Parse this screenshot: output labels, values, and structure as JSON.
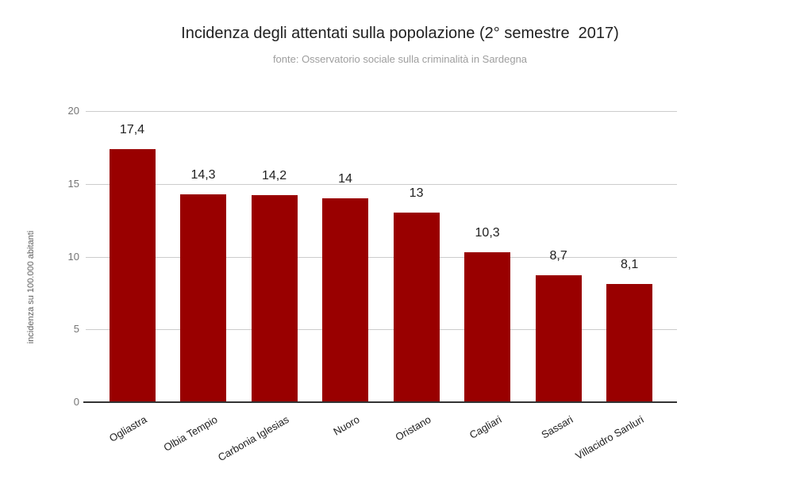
{
  "chart_data": {
    "type": "bar",
    "title": "Incidenza degli attentati sulla popolazione (2° semestre  2017)",
    "subtitle": "fonte: Osservatorio sociale sulla criminalità in Sardegna",
    "ylabel": "incidenza su 100.000 abitanti",
    "xlabel": "",
    "categories": [
      "Ogliastra",
      "Olbia Tempio",
      "Carbonia Iglesias",
      "Nuoro",
      "Oristano",
      "Cagliari",
      "Sassari",
      "Villacidro Sanluri"
    ],
    "values": [
      17.4,
      14.3,
      14.2,
      14,
      13,
      10.3,
      8.7,
      8.1
    ],
    "value_labels": [
      "17,4",
      "14,3",
      "14,2",
      "14",
      "13",
      "10,3",
      "8,7",
      "8,1"
    ],
    "ylim": [
      0,
      20
    ],
    "yticks": [
      0,
      5,
      10,
      15,
      20
    ],
    "grid": true,
    "legend_position": "none",
    "colors": {
      "bar": "#990000",
      "gridline": "#cccccc",
      "axis_line": "#333333",
      "tick_text": "#757575",
      "title_text": "#212121",
      "subtitle_text": "#9e9e9e",
      "background": "#ffffff"
    }
  }
}
